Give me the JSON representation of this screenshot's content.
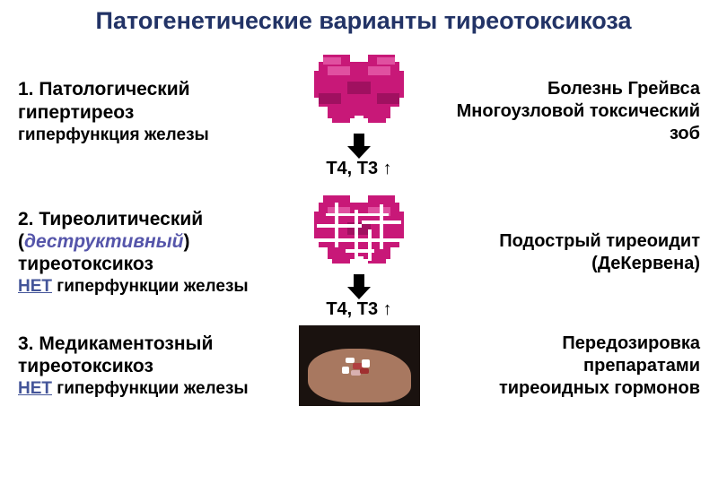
{
  "title": "Патогенетические варианты тиреотоксикоза",
  "colors": {
    "title": "#223366",
    "accent_italic": "#5555aa",
    "accent_no": "#445599",
    "thyroid": "#c81878",
    "thyroid_shade": "#a01060",
    "thyroid_hl": "#e050a0",
    "arrow": "#000000"
  },
  "sec1": {
    "heading": "1. Патологический гипертиреоз",
    "sub": "гиперфункция железы",
    "right1": "Болезнь Грейвса",
    "right2": "Многоузловой токсический зоб",
    "hormones": "Т4, Т3 ↑"
  },
  "sec2": {
    "heading_pre": "2. Тиреолитический (",
    "heading_em": "деструктивный",
    "heading_post": ") тиреотоксикоз",
    "no": "НЕТ",
    "sub_rest": " гиперфункции железы",
    "right1": "Подострый тиреоидит",
    "right2": "(ДеКервена)",
    "hormones": "Т4, Т3 ↑"
  },
  "sec3": {
    "heading": "3. Медикаментозный тиреотоксикоз",
    "no": "НЕТ",
    "sub_rest": " гиперфункции железы",
    "right1": "Передозировка",
    "right2": "препаратами",
    "right3": "тиреоидных гормонов"
  },
  "pills": [
    {
      "bg": "#ffffff",
      "w": 10,
      "h": 6,
      "l": 52,
      "t": 36
    },
    {
      "bg": "#b04040",
      "w": 12,
      "h": 7,
      "l": 60,
      "t": 42
    },
    {
      "bg": "#ffffff",
      "w": 9,
      "h": 9,
      "l": 70,
      "t": 38
    },
    {
      "bg": "#d8b0b0",
      "w": 11,
      "h": 6,
      "l": 58,
      "t": 50
    },
    {
      "bg": "#ffffff",
      "w": 8,
      "h": 8,
      "l": 48,
      "t": 46
    },
    {
      "bg": "#a03030",
      "w": 10,
      "h": 6,
      "l": 68,
      "t": 48
    }
  ]
}
